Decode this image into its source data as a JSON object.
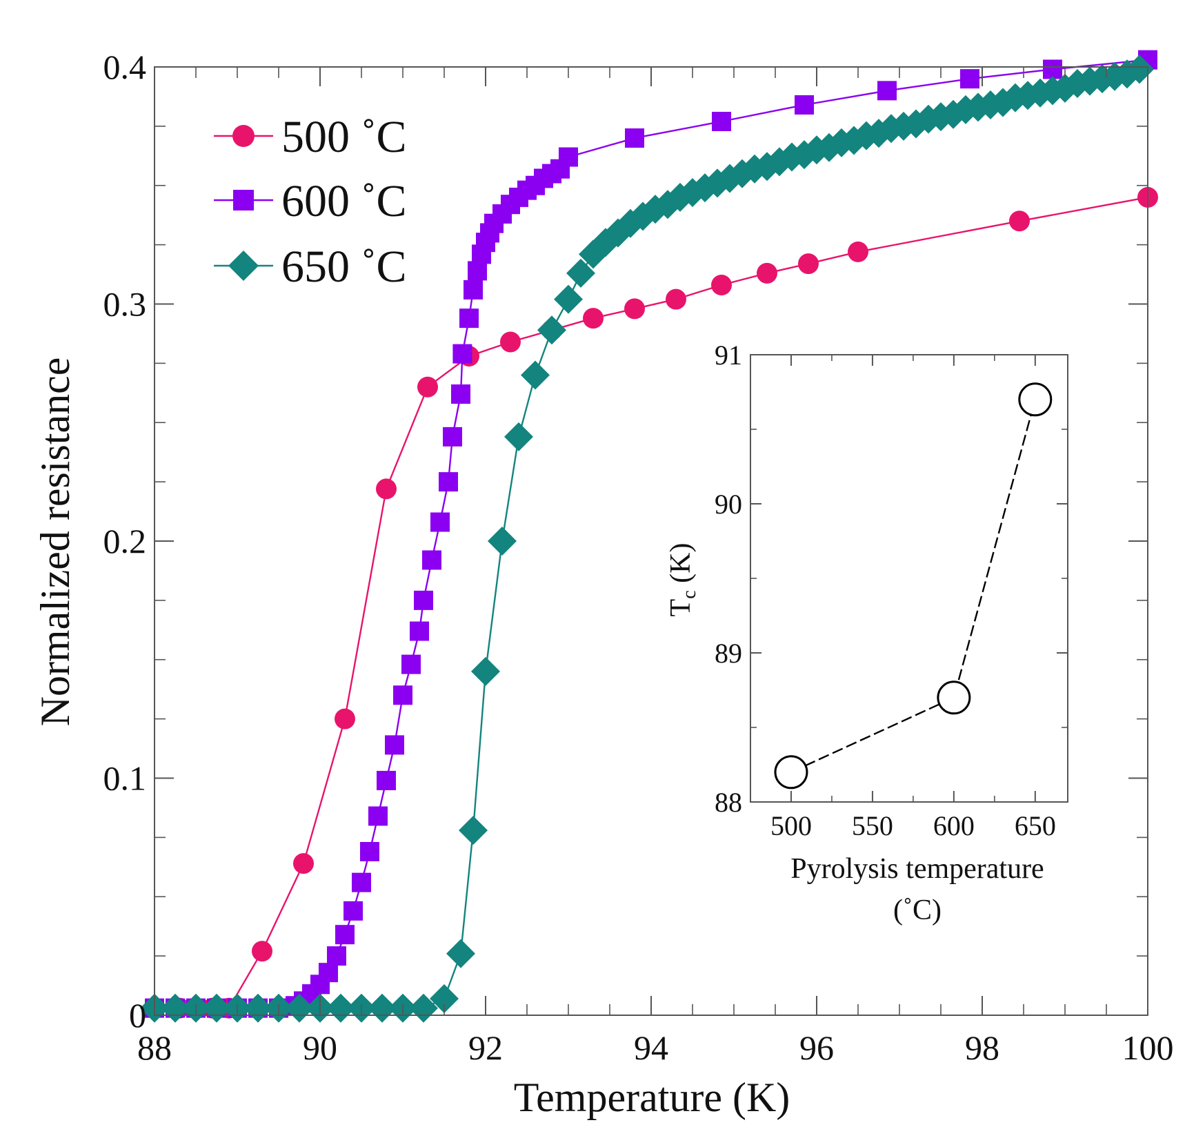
{
  "chart_data": [
    {
      "type": "line",
      "xlabel": "Temperature (K)",
      "ylabel": "Normalized resistance",
      "xlim": [
        88,
        100
      ],
      "ylim": [
        0,
        0.4
      ],
      "x_ticks": [
        88,
        90,
        92,
        94,
        96,
        98,
        100
      ],
      "y_ticks": [
        0,
        0.1,
        0.2,
        0.3,
        0.4
      ],
      "x_tick_labels": [
        "88",
        "90",
        "92",
        "94",
        "96",
        "98",
        "100"
      ],
      "y_tick_labels": [
        "0",
        "0.1",
        "0.2",
        "0.3",
        "0.4"
      ],
      "legend_position": "top-left",
      "series": [
        {
          "name": "500 ˚C",
          "marker": "circle",
          "color": "#E8146C",
          "points": [
            [
              88.0,
              0.003
            ],
            [
              88.3,
              0.003
            ],
            [
              88.5,
              0.003
            ],
            [
              88.7,
              0.003
            ],
            [
              88.9,
              0.003
            ],
            [
              89.3,
              0.027
            ],
            [
              89.8,
              0.064
            ],
            [
              90.3,
              0.125
            ],
            [
              90.8,
              0.222
            ],
            [
              91.3,
              0.265
            ],
            [
              91.8,
              0.278
            ],
            [
              92.3,
              0.284
            ],
            [
              92.8,
              0.289
            ],
            [
              93.3,
              0.294
            ],
            [
              93.8,
              0.298
            ],
            [
              94.3,
              0.302
            ],
            [
              94.85,
              0.308
            ],
            [
              95.4,
              0.313
            ],
            [
              95.9,
              0.317
            ],
            [
              96.5,
              0.322
            ],
            [
              98.45,
              0.335
            ],
            [
              100.0,
              0.345
            ]
          ]
        },
        {
          "name": "600 ˚C",
          "marker": "square",
          "color": "#8B00F0",
          "points": [
            [
              88.0,
              0.003
            ],
            [
              88.25,
              0.003
            ],
            [
              88.5,
              0.003
            ],
            [
              88.75,
              0.003
            ],
            [
              89.0,
              0.003
            ],
            [
              89.25,
              0.003
            ],
            [
              89.5,
              0.003
            ],
            [
              89.7,
              0.004
            ],
            [
              89.8,
              0.006
            ],
            [
              89.9,
              0.009
            ],
            [
              90.0,
              0.013
            ],
            [
              90.1,
              0.018
            ],
            [
              90.2,
              0.025
            ],
            [
              90.3,
              0.034
            ],
            [
              90.4,
              0.044
            ],
            [
              90.5,
              0.056
            ],
            [
              90.6,
              0.069
            ],
            [
              90.7,
              0.084
            ],
            [
              90.8,
              0.099
            ],
            [
              90.9,
              0.114
            ],
            [
              91.0,
              0.135
            ],
            [
              91.1,
              0.148
            ],
            [
              91.2,
              0.162
            ],
            [
              91.25,
              0.175
            ],
            [
              91.35,
              0.192
            ],
            [
              91.45,
              0.208
            ],
            [
              91.55,
              0.225
            ],
            [
              91.6,
              0.244
            ],
            [
              91.7,
              0.262
            ],
            [
              91.72,
              0.279
            ],
            [
              91.8,
              0.294
            ],
            [
              91.85,
              0.306
            ],
            [
              91.9,
              0.314
            ],
            [
              91.95,
              0.321
            ],
            [
              92.0,
              0.326
            ],
            [
              92.05,
              0.33
            ],
            [
              92.1,
              0.334
            ],
            [
              92.2,
              0.338
            ],
            [
              92.3,
              0.342
            ],
            [
              92.4,
              0.345
            ],
            [
              92.5,
              0.348
            ],
            [
              92.6,
              0.35
            ],
            [
              92.7,
              0.353
            ],
            [
              92.8,
              0.355
            ],
            [
              92.9,
              0.357
            ],
            [
              93.0,
              0.362
            ],
            [
              93.8,
              0.37
            ],
            [
              94.85,
              0.377
            ],
            [
              95.85,
              0.384
            ],
            [
              96.85,
              0.39
            ],
            [
              97.85,
              0.395
            ],
            [
              98.85,
              0.399
            ],
            [
              100.0,
              0.403
            ]
          ]
        },
        {
          "name": "650 ˚C",
          "marker": "diamond",
          "color": "#13847E",
          "points": [
            [
              88.0,
              0.003
            ],
            [
              88.25,
              0.003
            ],
            [
              88.5,
              0.003
            ],
            [
              88.75,
              0.003
            ],
            [
              89.0,
              0.003
            ],
            [
              89.25,
              0.003
            ],
            [
              89.5,
              0.003
            ],
            [
              89.75,
              0.003
            ],
            [
              90.0,
              0.003
            ],
            [
              90.25,
              0.003
            ],
            [
              90.5,
              0.003
            ],
            [
              90.75,
              0.003
            ],
            [
              91.0,
              0.003
            ],
            [
              91.25,
              0.003
            ],
            [
              91.5,
              0.007
            ],
            [
              91.7,
              0.026
            ],
            [
              91.85,
              0.078
            ],
            [
              92.0,
              0.145
            ],
            [
              92.2,
              0.2
            ],
            [
              92.4,
              0.244
            ],
            [
              92.6,
              0.27
            ],
            [
              92.8,
              0.289
            ],
            [
              93.0,
              0.302
            ],
            [
              93.15,
              0.313
            ],
            [
              93.3,
              0.321
            ],
            [
              93.45,
              0.326
            ],
            [
              93.6,
              0.33
            ],
            [
              93.75,
              0.334
            ],
            [
              93.9,
              0.337
            ],
            [
              94.05,
              0.34
            ],
            [
              94.2,
              0.342
            ],
            [
              94.35,
              0.345
            ],
            [
              94.5,
              0.347
            ],
            [
              94.65,
              0.349
            ],
            [
              94.8,
              0.351
            ],
            [
              94.95,
              0.353
            ],
            [
              95.1,
              0.355
            ],
            [
              95.25,
              0.357
            ],
            [
              95.4,
              0.358
            ],
            [
              95.55,
              0.36
            ],
            [
              95.7,
              0.362
            ],
            [
              95.85,
              0.363
            ],
            [
              96.0,
              0.365
            ],
            [
              96.15,
              0.366
            ],
            [
              96.3,
              0.368
            ],
            [
              96.45,
              0.369
            ],
            [
              96.6,
              0.371
            ],
            [
              96.75,
              0.372
            ],
            [
              96.9,
              0.374
            ],
            [
              97.05,
              0.375
            ],
            [
              97.2,
              0.376
            ],
            [
              97.35,
              0.378
            ],
            [
              97.5,
              0.379
            ],
            [
              97.65,
              0.38
            ],
            [
              97.8,
              0.382
            ],
            [
              97.95,
              0.383
            ],
            [
              98.1,
              0.384
            ],
            [
              98.25,
              0.385
            ],
            [
              98.4,
              0.387
            ],
            [
              98.55,
              0.388
            ],
            [
              98.7,
              0.389
            ],
            [
              98.85,
              0.39
            ],
            [
              99.0,
              0.391
            ],
            [
              99.15,
              0.393
            ],
            [
              99.3,
              0.394
            ],
            [
              99.45,
              0.395
            ],
            [
              99.6,
              0.396
            ],
            [
              99.75,
              0.397
            ],
            [
              99.9,
              0.399
            ]
          ]
        }
      ]
    },
    {
      "type": "line",
      "xlabel": "Pyrolysis temperature",
      "xlabel_unit": "(˚C)",
      "ylabel": "T",
      "ylabel_sub": "c",
      "ylabel_rest": " (K)",
      "xlim": [
        475,
        670
      ],
      "ylim": [
        88,
        91
      ],
      "x_ticks": [
        500,
        550,
        600,
        650
      ],
      "y_ticks": [
        88,
        89,
        90,
        91
      ],
      "x_tick_labels": [
        "500",
        "550",
        "600",
        "650"
      ],
      "y_tick_labels": [
        "88",
        "89",
        "90",
        "91"
      ],
      "series": [
        {
          "name": "Tc",
          "marker": "open-circle",
          "line_style": "dashed",
          "color": "#000000",
          "points": [
            [
              500,
              88.2
            ],
            [
              600,
              88.7
            ],
            [
              650,
              90.7
            ]
          ]
        }
      ]
    }
  ]
}
